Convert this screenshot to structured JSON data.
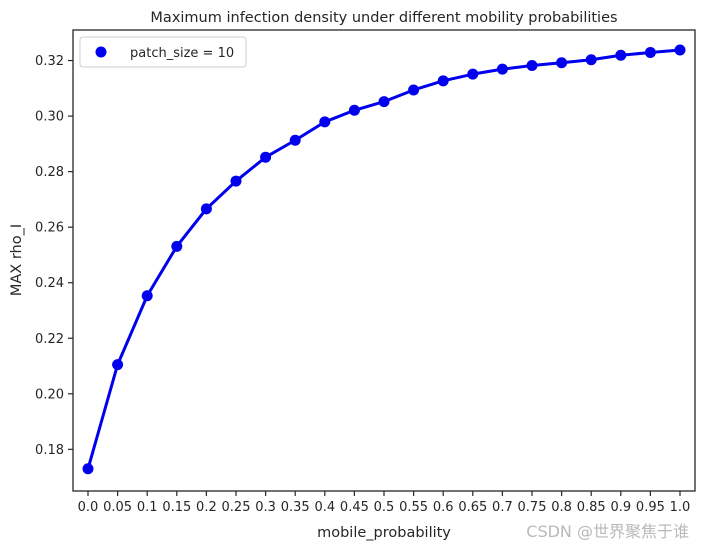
{
  "chart_data": {
    "type": "line",
    "title": "Maximum infection density under different mobility probabilities",
    "xlabel": "mobile_probability",
    "ylabel": "MAX rho_I",
    "categories": [
      "0.0",
      "0.05",
      "0.1",
      "0.15",
      "0.2",
      "0.25",
      "0.3",
      "0.35",
      "0.4",
      "0.45",
      "0.5",
      "0.55",
      "0.6",
      "0.65",
      "0.7",
      "0.75",
      "0.8",
      "0.85",
      "0.9",
      "0.95",
      "1.0"
    ],
    "series": [
      {
        "name": "patch_size = 10",
        "color": "#0000ee",
        "values": [
          0.173,
          0.2105,
          0.2353,
          0.2531,
          0.2666,
          0.2766,
          0.2852,
          0.2913,
          0.2979,
          0.3021,
          0.3052,
          0.3094,
          0.3127,
          0.3151,
          0.3169,
          0.3182,
          0.3192,
          0.3203,
          0.3219,
          0.3229,
          0.3238
        ]
      }
    ],
    "ylim": [
      0.165,
      0.331
    ],
    "yticks": [
      0.18,
      0.2,
      0.22,
      0.24,
      0.26,
      0.28,
      0.3,
      0.32
    ],
    "ytick_labels": [
      "0.18",
      "0.20",
      "0.22",
      "0.24",
      "0.26",
      "0.28",
      "0.30",
      "0.32"
    ],
    "grid": false,
    "legend_position": "top-left"
  },
  "watermark": "CSDN @世界聚焦于谁"
}
